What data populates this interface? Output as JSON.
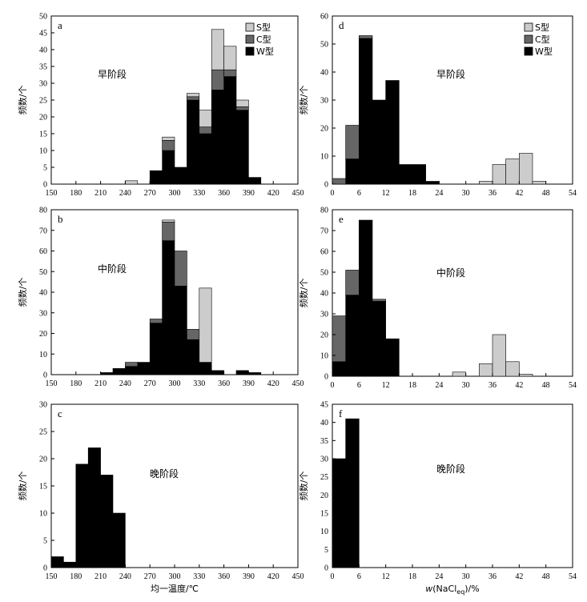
{
  "legend": [
    {
      "label": "S型",
      "color": "#cccccc"
    },
    {
      "label": "C型",
      "color": "#666666"
    },
    {
      "label": "W型",
      "color": "#000000"
    }
  ],
  "chart_data": [
    {
      "id": "a",
      "type": "bar",
      "stacked": true,
      "panel_label": "a",
      "stage_label": "早阶段",
      "ylabel": "频数/个",
      "xlabel": "",
      "xlim": [
        150,
        450
      ],
      "ylim": [
        0,
        50
      ],
      "xticks": [
        150,
        180,
        210,
        240,
        270,
        300,
        330,
        360,
        390,
        420,
        450
      ],
      "yticks": [
        0,
        5,
        10,
        15,
        20,
        25,
        30,
        35,
        40,
        45,
        50
      ],
      "bin_width": 15,
      "legend": true,
      "series": [
        {
          "name": "W型",
          "color": "#000000",
          "points": [
            [
              270,
              4
            ],
            [
              285,
              10
            ],
            [
              300,
              5
            ],
            [
              315,
              25
            ],
            [
              330,
              15
            ],
            [
              345,
              28
            ],
            [
              360,
              32
            ],
            [
              375,
              22
            ],
            [
              390,
              2
            ]
          ]
        },
        {
          "name": "C型",
          "color": "#666666",
          "points": [
            [
              285,
              3
            ],
            [
              315,
              1
            ],
            [
              330,
              2
            ],
            [
              345,
              6
            ],
            [
              360,
              2
            ],
            [
              375,
              1
            ]
          ]
        },
        {
          "name": "S型",
          "color": "#cccccc",
          "points": [
            [
              240,
              1
            ],
            [
              285,
              1
            ],
            [
              315,
              1
            ],
            [
              330,
              5
            ],
            [
              345,
              12
            ],
            [
              360,
              7
            ],
            [
              375,
              2
            ]
          ]
        }
      ]
    },
    {
      "id": "b",
      "type": "bar",
      "stacked": true,
      "panel_label": "b",
      "stage_label": "中阶段",
      "ylabel": "频数/个",
      "xlabel": "",
      "xlim": [
        150,
        450
      ],
      "ylim": [
        0,
        80
      ],
      "xticks": [
        150,
        180,
        210,
        240,
        270,
        300,
        330,
        360,
        390,
        420,
        450
      ],
      "yticks": [
        0,
        10,
        20,
        30,
        40,
        50,
        60,
        70,
        80
      ],
      "bin_width": 15,
      "legend": false,
      "series": [
        {
          "name": "W型",
          "color": "#000000",
          "points": [
            [
              210,
              1
            ],
            [
              225,
              3
            ],
            [
              240,
              4
            ],
            [
              255,
              6
            ],
            [
              270,
              25
            ],
            [
              285,
              65
            ],
            [
              300,
              43
            ],
            [
              315,
              17
            ],
            [
              330,
              6
            ],
            [
              345,
              2
            ],
            [
              375,
              2
            ],
            [
              390,
              1
            ]
          ]
        },
        {
          "name": "C型",
          "color": "#666666",
          "points": [
            [
              240,
              2
            ],
            [
              270,
              2
            ],
            [
              285,
              9
            ],
            [
              300,
              17
            ],
            [
              315,
              5
            ]
          ]
        },
        {
          "name": "S型",
          "color": "#cccccc",
          "points": [
            [
              285,
              1
            ],
            [
              330,
              36
            ]
          ]
        }
      ]
    },
    {
      "id": "c",
      "type": "bar",
      "stacked": true,
      "panel_label": "c",
      "stage_label": "晚阶段",
      "ylabel": "频数/个",
      "xlabel": "均一温度/℃",
      "xlim": [
        150,
        450
      ],
      "ylim": [
        0,
        30
      ],
      "xticks": [
        150,
        180,
        210,
        240,
        270,
        300,
        330,
        360,
        390,
        420,
        450
      ],
      "yticks": [
        0,
        5,
        10,
        15,
        20,
        25,
        30
      ],
      "bin_width": 15,
      "legend": false,
      "series": [
        {
          "name": "W型",
          "color": "#000000",
          "points": [
            [
              150,
              2
            ],
            [
              165,
              1
            ],
            [
              180,
              19
            ],
            [
              195,
              22
            ],
            [
              210,
              17
            ],
            [
              225,
              10
            ]
          ]
        }
      ]
    },
    {
      "id": "d",
      "type": "bar",
      "stacked": true,
      "panel_label": "d",
      "stage_label": "早阶段",
      "ylabel": "频数/个",
      "xlabel": "",
      "xlim": [
        0,
        54
      ],
      "ylim": [
        0,
        60
      ],
      "xticks": [
        0,
        6,
        12,
        18,
        24,
        30,
        36,
        42,
        48,
        54
      ],
      "yticks": [
        0,
        10,
        20,
        30,
        40,
        50,
        60
      ],
      "bin_width": 3,
      "legend": true,
      "series": [
        {
          "name": "W型",
          "color": "#000000",
          "points": [
            [
              3,
              9
            ],
            [
              6,
              52
            ],
            [
              9,
              30
            ],
            [
              12,
              37
            ],
            [
              15,
              7
            ],
            [
              18,
              7
            ],
            [
              21,
              1
            ]
          ]
        },
        {
          "name": "C型",
          "color": "#666666",
          "points": [
            [
              0,
              2
            ],
            [
              3,
              12
            ],
            [
              6,
              1
            ]
          ]
        },
        {
          "name": "S型",
          "color": "#cccccc",
          "points": [
            [
              33,
              1
            ],
            [
              36,
              7
            ],
            [
              39,
              9
            ],
            [
              42,
              11
            ],
            [
              45,
              1
            ]
          ]
        }
      ]
    },
    {
      "id": "e",
      "type": "bar",
      "stacked": true,
      "panel_label": "e",
      "stage_label": "中阶段",
      "ylabel": "频数/个",
      "xlabel": "",
      "xlim": [
        0,
        54
      ],
      "ylim": [
        0,
        80
      ],
      "xticks": [
        0,
        6,
        12,
        18,
        24,
        30,
        36,
        42,
        48,
        54
      ],
      "yticks": [
        0,
        10,
        20,
        30,
        40,
        50,
        60,
        70,
        80
      ],
      "bin_width": 3,
      "legend": false,
      "series": [
        {
          "name": "W型",
          "color": "#000000",
          "points": [
            [
              0,
              7
            ],
            [
              3,
              39
            ],
            [
              6,
              75
            ],
            [
              9,
              36
            ],
            [
              12,
              18
            ]
          ]
        },
        {
          "name": "C型",
          "color": "#666666",
          "points": [
            [
              0,
              22
            ],
            [
              3,
              12
            ],
            [
              9,
              1
            ]
          ]
        },
        {
          "name": "S型",
          "color": "#cccccc",
          "points": [
            [
              27,
              2
            ],
            [
              33,
              6
            ],
            [
              36,
              20
            ],
            [
              39,
              7
            ],
            [
              42,
              1
            ]
          ]
        }
      ]
    },
    {
      "id": "f",
      "type": "bar",
      "stacked": true,
      "panel_label": "f",
      "stage_label": "晚阶段",
      "ylabel": "频数/个",
      "xlabel": "w(NaCl_eq)/%",
      "xlim": [
        0,
        54
      ],
      "ylim": [
        0,
        45
      ],
      "xticks": [
        0,
        6,
        12,
        18,
        24,
        30,
        36,
        42,
        48,
        54
      ],
      "yticks": [
        0,
        5,
        10,
        15,
        20,
        25,
        30,
        35,
        40,
        45
      ],
      "bin_width": 3,
      "legend": false,
      "series": [
        {
          "name": "W型",
          "color": "#000000",
          "points": [
            [
              0,
              30
            ],
            [
              3,
              41
            ]
          ]
        }
      ]
    }
  ]
}
